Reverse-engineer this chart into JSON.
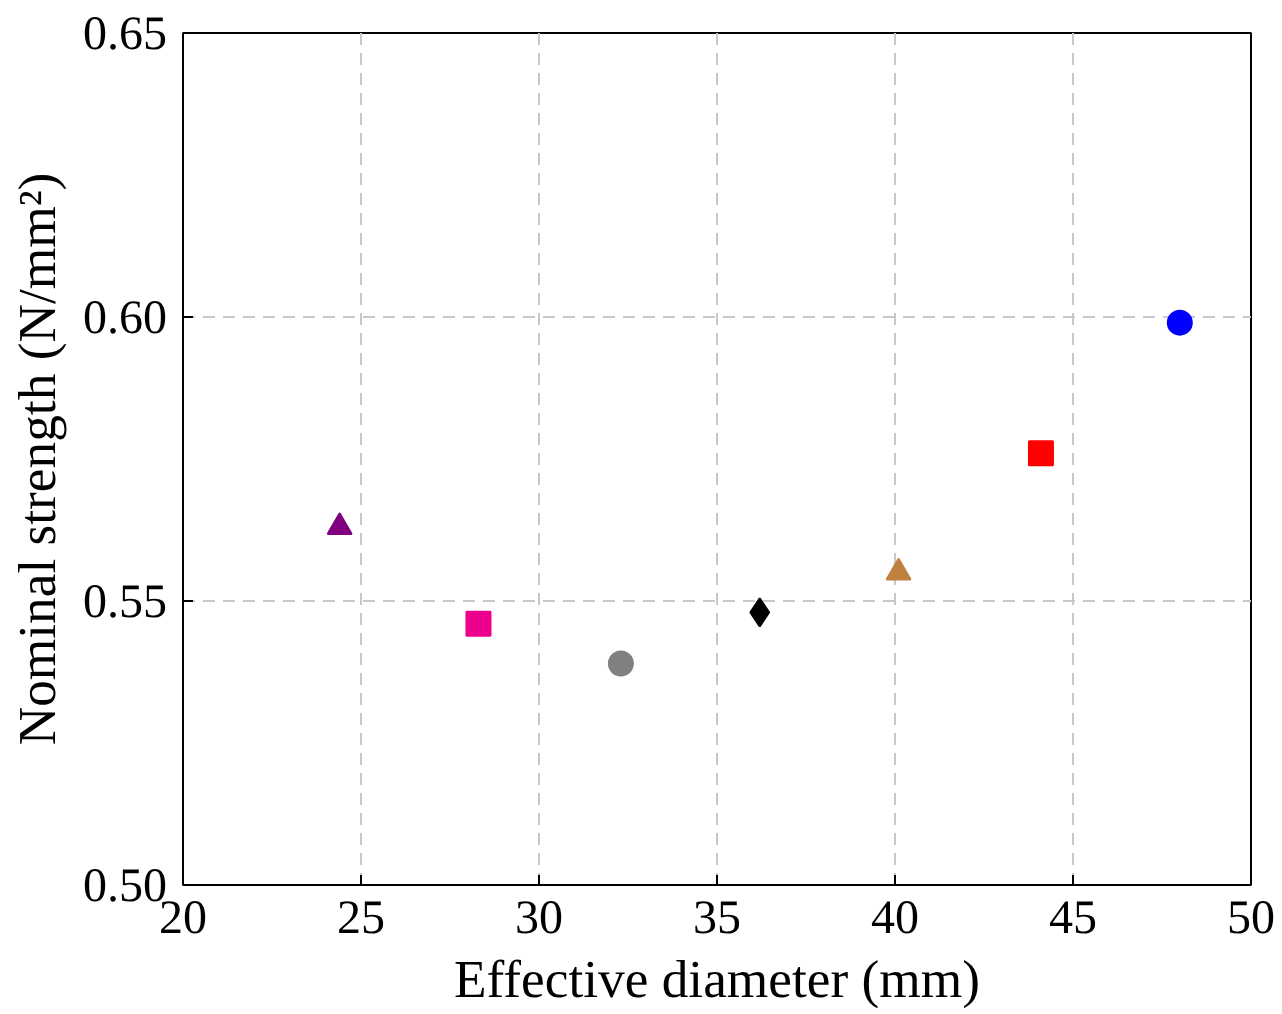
{
  "chart_data": {
    "type": "scatter",
    "xlabel": "Effective diameter (mm)",
    "ylabel": "Nominal strength (N/mm²)",
    "xlim": [
      20,
      50
    ],
    "xticks": [
      20,
      25,
      30,
      35,
      40,
      45,
      50
    ],
    "ylim": [
      0.5,
      0.65
    ],
    "yticks": [
      {
        "value": 0.5,
        "label": "0.50"
      },
      {
        "value": 0.55,
        "label": "0.55"
      },
      {
        "value": 0.6,
        "label": "0.60"
      },
      {
        "value": 0.65,
        "label": "0.65"
      }
    ],
    "grid": true,
    "series": [
      {
        "x": [
          24.4
        ],
        "values": [
          0.563
        ],
        "color": "#800080",
        "marker": "triangle"
      },
      {
        "x": [
          28.3
        ],
        "values": [
          0.546
        ],
        "color": "#ec008c",
        "marker": "square"
      },
      {
        "x": [
          32.3
        ],
        "values": [
          0.539
        ],
        "color": "#808080",
        "marker": "circle"
      },
      {
        "x": [
          36.2
        ],
        "values": [
          0.548
        ],
        "color": "#000000",
        "marker": "diamond"
      },
      {
        "x": [
          40.1
        ],
        "values": [
          0.555
        ],
        "color": "#bf8040",
        "marker": "triangle"
      },
      {
        "x": [
          44.1
        ],
        "values": [
          0.576
        ],
        "color": "#ff0000",
        "marker": "square"
      },
      {
        "x": [
          48.0
        ],
        "values": [
          0.599
        ],
        "color": "#0000ff",
        "marker": "circle"
      }
    ]
  }
}
